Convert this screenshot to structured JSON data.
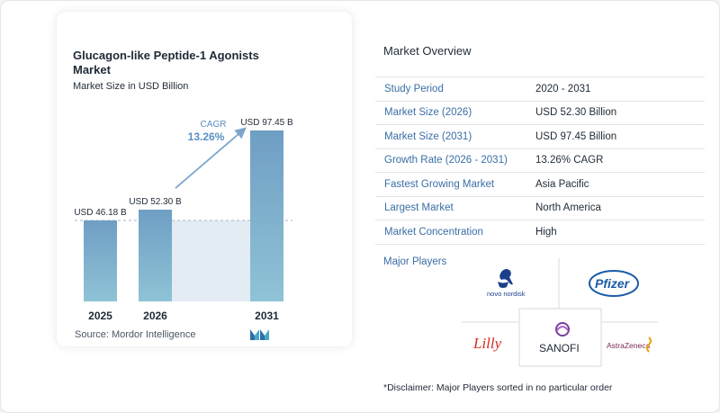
{
  "chart": {
    "title": "Glucagon-like Peptide-1 Agonists Market",
    "subtitle": "Market Size in USD Billion",
    "cagr_label": "CAGR",
    "cagr_value": "13.26%",
    "source": "Source:  Mordor Intelligence",
    "colors": {
      "bar_top": "#6f9ec4",
      "bar_bottom": "#8fc3d6",
      "baseline_fill": "#e3ebf3",
      "arrow": "#7ea6cc",
      "cagr_text": "#5b8ec2"
    }
  },
  "chart_data": {
    "type": "bar",
    "categories": [
      "2025",
      "2026",
      "2031"
    ],
    "values": [
      46.18,
      52.3,
      97.45
    ],
    "value_labels": [
      "USD 46.18 B",
      "USD 52.30 B",
      "USD 97.45 B"
    ],
    "title": "Glucagon-like Peptide-1 Agonists Market",
    "subtitle": "Market Size in USD Billion",
    "annotation": "CAGR 13.26%"
  },
  "overview": {
    "title": "Market Overview",
    "rows": [
      {
        "label": "Study Period",
        "value": "2020 - 2031"
      },
      {
        "label": "Market Size (2026)",
        "value": "USD 52.30 Billion"
      },
      {
        "label": "Market Size (2031)",
        "value": "USD 97.45 Billion"
      },
      {
        "label": "Growth Rate (2026 - 2031)",
        "value": "13.26% CAGR"
      },
      {
        "label": "Fastest Growing Market",
        "value": "Asia Pacific"
      },
      {
        "label": "Largest Market",
        "value": "North America"
      },
      {
        "label": "Market Concentration",
        "value": "High"
      }
    ]
  },
  "players": {
    "title": "Major Players",
    "names": [
      "novo nordisk",
      "Pfizer",
      "Lilly",
      "SANOFI",
      "AstraZeneca"
    ]
  },
  "disclaimer": "*Disclaimer: Major Players sorted in no particular order"
}
